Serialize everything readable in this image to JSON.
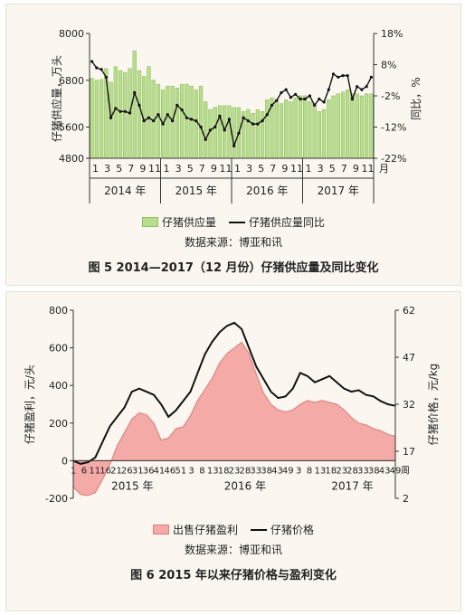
{
  "chart_data": [
    {
      "type": "bar",
      "title": "",
      "ylabel": "仔猪供应量，万头",
      "y2label": "同比，%",
      "ylim": [
        4800,
        8000
      ],
      "yticks": [
        "8000",
        "6800",
        "5600",
        "4800"
      ],
      "y2lim": [
        -22,
        18
      ],
      "y2ticks": [
        "18%",
        "8%",
        "-2%",
        "-12%",
        "-22%"
      ],
      "month_labels": [
        "1",
        "3",
        "5",
        "7",
        "9",
        "11",
        "1",
        "3",
        "5",
        "7",
        "9",
        "11",
        "1",
        "3",
        "5",
        "7",
        "9",
        "11",
        "1",
        "3",
        "5",
        "7",
        "9",
        "11"
      ],
      "month_unit": "月",
      "year_labels": [
        "2014 年",
        "2015 年",
        "2016 年",
        "2017 年"
      ],
      "series": [
        {
          "name": "仔猪供应量",
          "kind": "bar",
          "axis": "left",
          "values": [
            6850,
            6800,
            6820,
            7100,
            6750,
            7150,
            7050,
            7000,
            7100,
            7550,
            7050,
            6900,
            7150,
            6800,
            6700,
            6550,
            6650,
            6650,
            6600,
            6700,
            6700,
            6650,
            6550,
            6650,
            6250,
            6050,
            6100,
            6150,
            6150,
            6150,
            6100,
            6100,
            6000,
            6050,
            5950,
            6050,
            6000,
            6300,
            6350,
            6300,
            6200,
            6300,
            6250,
            6350,
            6400,
            6400,
            6250,
            6200,
            6000,
            6050,
            6300,
            6400,
            6450,
            6500,
            6550,
            6450,
            6450,
            6400,
            6450,
            6450
          ]
        },
        {
          "name": "仔猪供应量同比",
          "kind": "line",
          "axis": "right",
          "values": [
            9,
            7,
            6.5,
            4,
            -9,
            -6,
            -7,
            -7,
            -7.5,
            -1,
            -5,
            -10,
            -9,
            -10,
            -8,
            -11,
            -8,
            -10,
            -5,
            -6.5,
            -9,
            -9.5,
            -10,
            -12,
            -16,
            -13,
            -12,
            -8.5,
            -13,
            -9.5,
            -18,
            -14,
            -9,
            -10,
            -11,
            -11,
            -10,
            -8,
            -5,
            -3.5,
            -1,
            0,
            -2.5,
            -1.5,
            -3,
            -3,
            -2,
            -5,
            -3,
            -4,
            0,
            5,
            4,
            4.5,
            4.5,
            -3,
            1,
            0,
            1,
            4
          ]
        }
      ],
      "legend": [
        "仔猪供应量",
        "仔猪供应量同比"
      ]
    },
    {
      "type": "area",
      "title": "",
      "ylabel": "仔猪盈利，元/头",
      "y2label": "仔猪价格，元/kg",
      "ylim": [
        -200,
        800
      ],
      "yticks": [
        "800",
        "600",
        "400",
        "200",
        "0",
        "-200"
      ],
      "y2lim": [
        2,
        62
      ],
      "y2ticks": [
        "62",
        "47",
        "32",
        "17",
        "2"
      ],
      "week_labels": [
        "1",
        "6",
        "11",
        "16",
        "21",
        "26",
        "31",
        "36",
        "41",
        "46",
        "51",
        "3",
        "8",
        "13",
        "18",
        "23",
        "28",
        "33",
        "38",
        "43",
        "49",
        "3",
        "8",
        "13",
        "18",
        "23",
        "28",
        "33",
        "38",
        "43",
        "49"
      ],
      "week_unit": "周",
      "year_labels": [
        "2015 年",
        "2016 年",
        "2017 年"
      ],
      "series": [
        {
          "name": "出售仔猪盈利",
          "kind": "area",
          "axis": "left",
          "values": [
            -140,
            -180,
            -185,
            -170,
            -100,
            -20,
            80,
            150,
            220,
            255,
            245,
            200,
            110,
            120,
            170,
            180,
            240,
            320,
            380,
            440,
            520,
            570,
            600,
            630,
            570,
            460,
            360,
            300,
            270,
            260,
            270,
            300,
            320,
            310,
            320,
            310,
            300,
            270,
            230,
            200,
            190,
            170,
            160,
            140,
            130
          ]
        },
        {
          "name": "仔猪价格",
          "kind": "line",
          "axis": "right",
          "values": [
            14,
            13,
            13.5,
            15,
            20,
            25,
            28,
            31,
            36,
            37,
            36,
            35,
            32,
            28,
            30,
            33,
            36,
            42,
            48,
            52,
            55,
            57,
            58,
            56,
            50,
            44,
            40,
            36,
            34,
            34.5,
            37,
            42,
            41,
            39,
            40,
            41,
            39,
            37,
            36,
            36.5,
            35,
            34.5,
            33,
            32,
            31.5
          ]
        }
      ],
      "legend": [
        "出售仔猪盈利",
        "仔猪价格"
      ]
    }
  ],
  "figure1": {
    "source": "数据来源：博亚和讯",
    "caption": "图 5  2014—2017（12 月份）仔猪供应量及同比变化"
  },
  "figure2": {
    "source": "数据来源：博亚和讯",
    "caption": "图 6  2015 年以来仔猪价格与盈利变化"
  },
  "colors": {
    "bar_fill": "#b9dd8e",
    "bar_stroke": "#8fbf5d",
    "line": "#111111",
    "area_fill": "#f4aaa6",
    "area_stroke": "#d77e79",
    "panel_bg": "#fbf7f0"
  }
}
